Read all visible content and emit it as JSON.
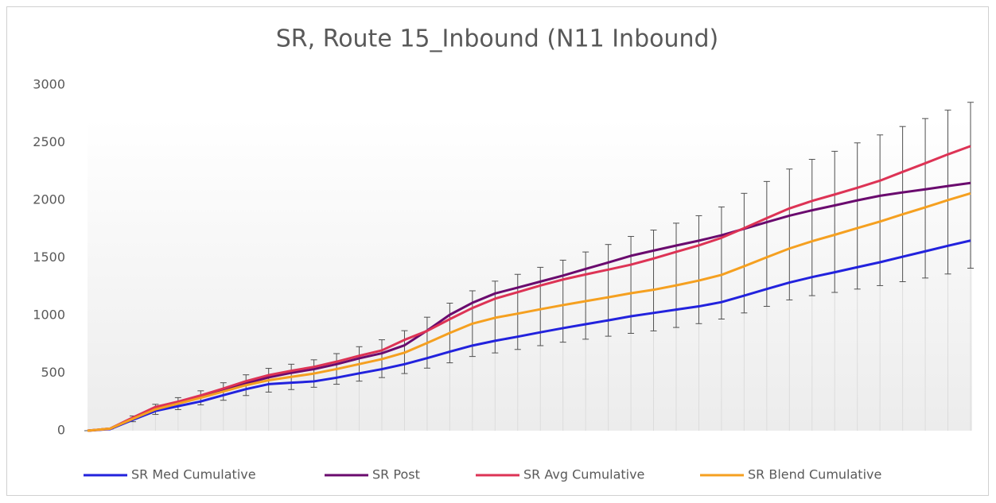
{
  "chart_data": {
    "type": "line",
    "title": "SR, Route 15_Inbound (N11 Inbound)",
    "ylim": [
      0,
      3000
    ],
    "yticks": [
      0,
      500,
      1000,
      1500,
      2000,
      2500,
      3000
    ],
    "legend": "bottom",
    "series": [
      {
        "name": "SR Med Cumulative",
        "color": "#2222dd",
        "values": [
          0,
          14,
          94,
          171,
          213,
          254,
          308,
          361,
          404,
          416,
          428,
          460,
          498,
          534,
          577,
          630,
          686,
          739,
          780,
          816,
          854,
          890,
          924,
          958,
          993,
          1022,
          1051,
          1079,
          1116,
          1172,
          1230,
          1286,
          1333,
          1375,
          1419,
          1462,
          1510,
          1557,
          1605,
          1650
        ]
      },
      {
        "name": "SR Post",
        "color": "#6a0a6e",
        "values": [
          0,
          18,
          108,
          195,
          244,
          296,
          352,
          412,
          463,
          502,
          534,
          577,
          628,
          672,
          741,
          869,
          1006,
          1110,
          1191,
          1242,
          1294,
          1346,
          1404,
          1460,
          1518,
          1563,
          1607,
          1649,
          1696,
          1752,
          1810,
          1866,
          1913,
          1955,
          1999,
          2039,
          2068,
          2095,
          2123,
          2150
        ]
      },
      {
        "name": "SR Avg Cumulative",
        "color": "#dd3355",
        "values": [
          0,
          18,
          114,
          206,
          252,
          306,
          366,
          430,
          482,
          520,
          554,
          599,
          650,
          697,
          788,
          866,
          968,
          1065,
          1146,
          1202,
          1260,
          1312,
          1356,
          1398,
          1441,
          1494,
          1552,
          1608,
          1674,
          1758,
          1845,
          1929,
          1994,
          2050,
          2108,
          2170,
          2246,
          2321,
          2398,
          2470
        ]
      },
      {
        "name": "SR Blend Cumulative",
        "color": "#f5a020",
        "values": [
          0,
          18,
          103,
          185,
          235,
          285,
          340,
          395,
          438,
          467,
          496,
          535,
          578,
          621,
          677,
          761,
          848,
          929,
          980,
          1016,
          1054,
          1090,
          1124,
          1158,
          1193,
          1223,
          1261,
          1303,
          1352,
          1427,
          1505,
          1581,
          1644,
          1700,
          1758,
          1815,
          1878,
          1938,
          2001,
          2060
        ],
        "error_plus": [
          0,
          4,
          25,
          44,
          52,
          61,
          76,
          90,
          103,
          110,
          119,
          134,
          151,
          168,
          191,
          224,
          259,
          285,
          318,
          341,
          364,
          390,
          427,
          458,
          493,
          518,
          540,
          563,
          590,
          633,
          658,
          690,
          711,
          725,
          740,
          752,
          762,
          771,
          781,
          790
        ],
        "error_minus": [
          0,
          4,
          25,
          44,
          52,
          61,
          76,
          90,
          103,
          110,
          119,
          132,
          148,
          160,
          181,
          218,
          259,
          285,
          305,
          311,
          316,
          322,
          330,
          338,
          348,
          357,
          365,
          374,
          383,
          405,
          426,
          446,
          472,
          500,
          529,
          556,
          585,
          613,
          641,
          650
        ]
      }
    ]
  }
}
